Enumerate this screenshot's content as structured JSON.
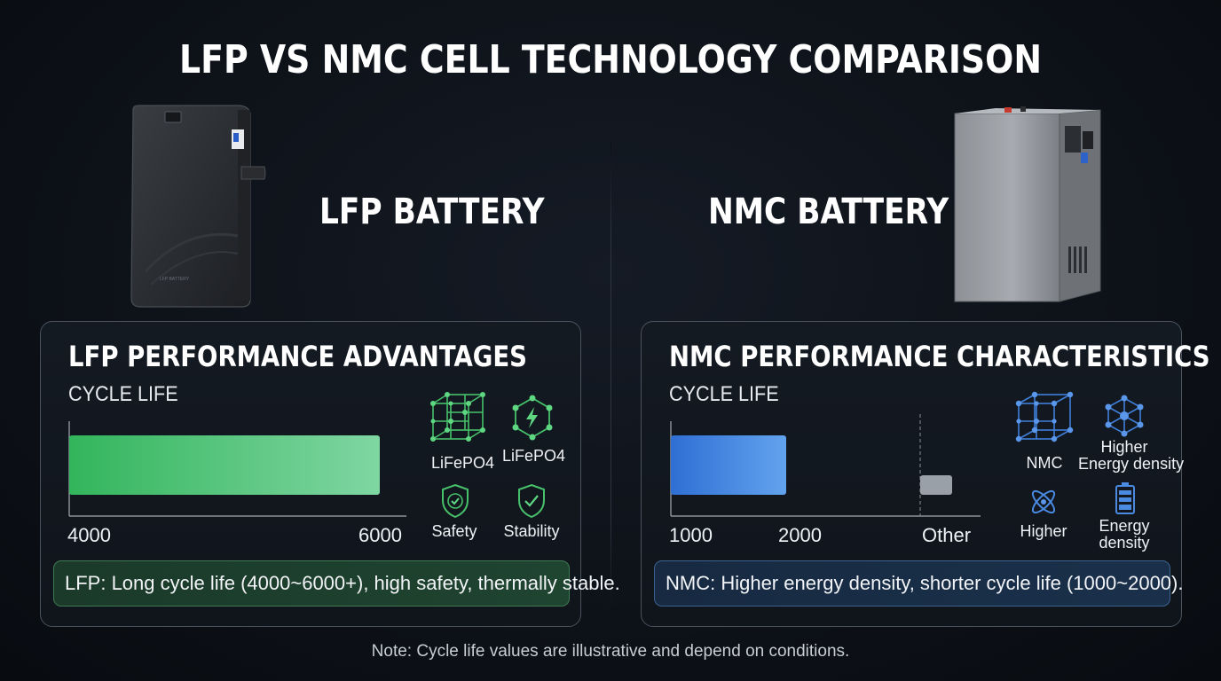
{
  "title": "LFP VS NMC CELL TECHNOLOGY COMPARISON",
  "left": {
    "battery_title": "LFP BATTERY",
    "panel_title": "LFP PERFORMANCE ADVANTAGES",
    "chart_label": "CYCLE LIFE",
    "icons": [
      {
        "icon": "crystal-lattice-icon",
        "label": "LiFePO4"
      },
      {
        "icon": "hexagon-lightning-icon",
        "label": "LiFePO4"
      },
      {
        "icon": "shield-check-icon",
        "label": "Safety"
      },
      {
        "icon": "shield-check-icon",
        "label": "Stability"
      }
    ],
    "summary": "LFP: Long cycle life (4000~6000+), high safety, thermally stable.",
    "accent": "#5fcf86"
  },
  "right": {
    "battery_title": "NMC BATTERY",
    "panel_title": "NMC PERFORMANCE CHARACTERISTICS",
    "chart_label": "CYCLE LIFE",
    "icons": [
      {
        "icon": "crystal-lattice-icon",
        "label": "NMC"
      },
      {
        "icon": "molecule-network-icon",
        "label": "Higher\nEnergy density"
      },
      {
        "icon": "atom-icon",
        "label": "Higher"
      },
      {
        "icon": "battery-level-icon",
        "label": "Energy\ndensity"
      }
    ],
    "summary": "NMC: Higher energy density, shorter cycle life (1000~2000).",
    "accent": "#3f7fd9"
  },
  "chart_data": [
    {
      "type": "bar",
      "orientation": "horizontal",
      "title": "CYCLE LIFE",
      "xticks": [
        "4000",
        "6000"
      ],
      "bars": [
        {
          "start": 4000,
          "end": 6000
        }
      ],
      "xlim": [
        4000,
        6000
      ]
    },
    {
      "type": "bar",
      "orientation": "horizontal",
      "title": "CYCLE LIFE",
      "xticks": [
        "1000",
        "2000",
        "Other"
      ],
      "bars": [
        {
          "start": 1000,
          "end": 2000
        }
      ],
      "other_marker": true
    }
  ],
  "note": "Note: Cycle life values are illustrative and depend on conditions."
}
